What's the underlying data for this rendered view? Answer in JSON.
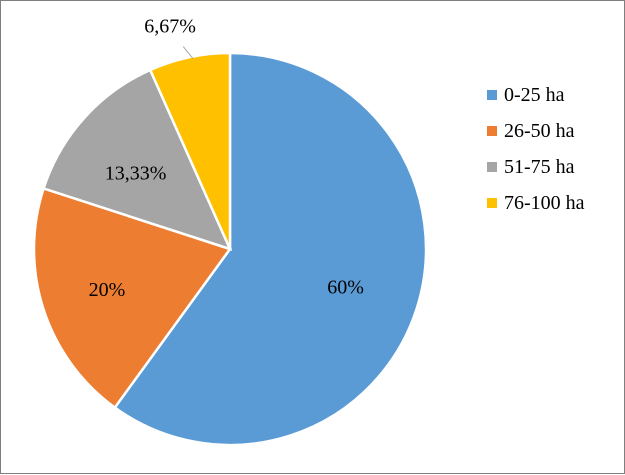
{
  "chart_data": {
    "type": "pie",
    "title": "",
    "categories": [
      "0-25 ha",
      "26-50 ha",
      "51-75 ha",
      "76-100 ha"
    ],
    "values": [
      60,
      20,
      13.33,
      6.67
    ],
    "data_labels": [
      "60%",
      "20%",
      "13,33%",
      "6,67%"
    ],
    "colors": [
      "#5b9bd5",
      "#ed7d31",
      "#a5a5a5",
      "#ffc000"
    ],
    "start_angle_deg": 0,
    "direction": "clockwise",
    "legend_position": "right"
  }
}
